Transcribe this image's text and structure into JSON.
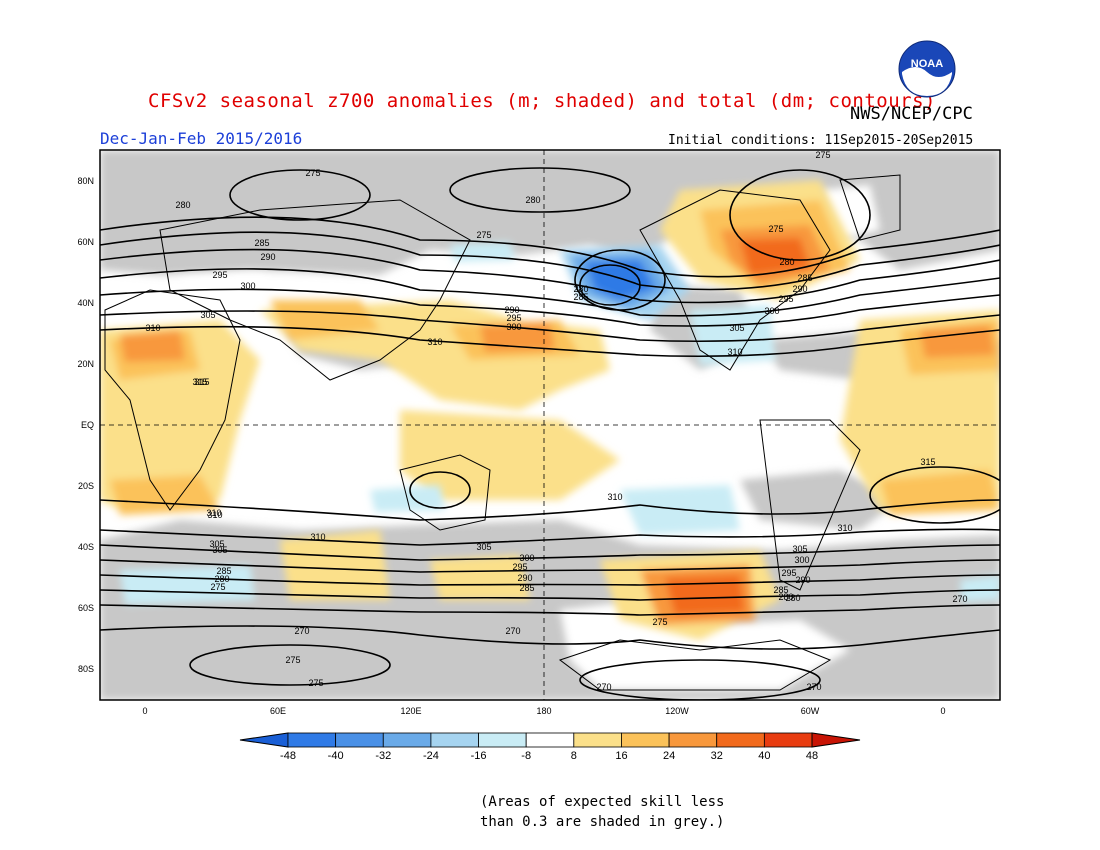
{
  "header": {
    "title": "CFSv2 seasonal z700 anomalies (m; shaded) and total (dm; contours)",
    "organization": "NWS/NCEP/CPC",
    "logo_text": "NOAA",
    "season": "Dec-Jan-Feb 2015/2016",
    "initial_conditions": "Initial conditions: 11Sep2015-20Sep2015"
  },
  "axes": {
    "lat_labels": [
      "80N",
      "60N",
      "40N",
      "20N",
      "EQ",
      "20S",
      "40S",
      "60S",
      "80S"
    ],
    "lon_labels": [
      "0",
      "60E",
      "120E",
      "180",
      "120W",
      "60W",
      "0"
    ]
  },
  "colorbar": {
    "labels": [
      "-48",
      "-40",
      "-32",
      "-24",
      "-16",
      "-8",
      "8",
      "16",
      "24",
      "32",
      "40",
      "48"
    ],
    "colors": [
      "#1a5fd6",
      "#2f7ae6",
      "#4a90e6",
      "#6aaae8",
      "#a6d4f0",
      "#c9ecf5",
      "#ffffff",
      "#fbe08a",
      "#fbc25a",
      "#f8983c",
      "#f26a1c",
      "#e83c10",
      "#c81405"
    ]
  },
  "note": {
    "line1": "(Areas of expected skill less",
    "line2": "than 0.3 are shaded in grey.)"
  },
  "contour_labels": [
    "275",
    "280",
    "275",
    "280",
    "285",
    "290",
    "295",
    "300",
    "305",
    "310",
    "315",
    "310",
    "305",
    "310",
    "300",
    "295",
    "290",
    "285",
    "280",
    "275",
    "275",
    "280",
    "285",
    "290",
    "295",
    "300",
    "305",
    "310",
    "310",
    "315",
    "310",
    "305",
    "300",
    "295",
    "290",
    "285",
    "280",
    "275",
    "270",
    "310",
    "305",
    "300",
    "295",
    "290",
    "285",
    "280",
    "270",
    "270",
    "275",
    "275",
    "270",
    "270",
    "315",
    "310",
    "305",
    "275",
    "280",
    "285"
  ],
  "colors": {
    "grey": "#c8c8c8",
    "grid": "#000000",
    "title": "#e00000",
    "season": "#1c3fd8"
  }
}
